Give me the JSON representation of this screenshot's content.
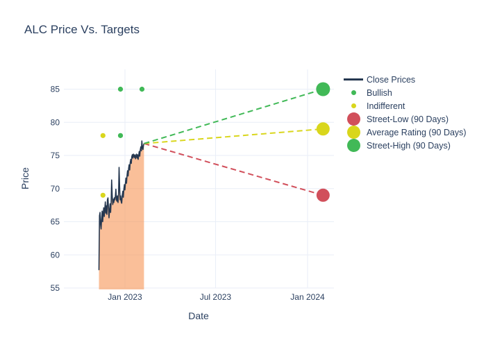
{
  "title": "ALC Price Vs. Targets",
  "colors": {
    "text": "#2a3f5f",
    "grid": "#e9eef7",
    "close_line": "#263850",
    "area_fill": "rgba(247,148,85,0.6)",
    "bullish": "#41b957",
    "indifferent": "#d9d61c",
    "street_low": "#d14f5b",
    "average_rating": "#d9d61c",
    "street_high": "#41b957"
  },
  "chart_data": {
    "type": "line",
    "title": "ALC Price Vs. Targets",
    "xlabel": "Date",
    "ylabel": "Price",
    "ylim": [
      55,
      87
    ],
    "yticks": [
      55,
      60,
      65,
      70,
      75,
      80,
      85
    ],
    "xticks": [
      {
        "date": "2023-01-01",
        "label": "Jan 2023"
      },
      {
        "date": "2023-07-01",
        "label": "Jul 2023"
      },
      {
        "date": "2024-01-01",
        "label": "Jan 2024"
      }
    ],
    "grid": "on",
    "legend_position": "right",
    "close_prices": {
      "name": "Close Prices",
      "start_date": "2022-11-10",
      "interval_days": 1.0588,
      "values": [
        57.7,
        65.9,
        66.4,
        64.6,
        63.9,
        65.3,
        66.6,
        65.0,
        66.2,
        67.1,
        65.8,
        66.9,
        68.0,
        66.3,
        67.4,
        66.1,
        68.3,
        68.6,
        67.0,
        65.6,
        66.8,
        67.7,
        66.4,
        68.1,
        71.3,
        69.0,
        67.6,
        68.4,
        67.9,
        68.6,
        68.3,
        68.9,
        69.9,
        68.3,
        68.1,
        68.9,
        67.9,
        69.4,
        73.2,
        70.3,
        68.3,
        68.9,
        68.0,
        67.8,
        69.0,
        69.6,
        68.7,
        69.9,
        70.6,
        69.8,
        70.9,
        71.6,
        70.8,
        72.0,
        72.7,
        71.9,
        73.1,
        73.6,
        72.8,
        73.9,
        74.4,
        73.8,
        74.8,
        75.1,
        74.6,
        75.2,
        75.0,
        74.7,
        75.1,
        74.5,
        74.9,
        75.2,
        74.6,
        75.1,
        74.4,
        75.0,
        75.6,
        74.9,
        75.8,
        76.3,
        75.7,
        77.2,
        76.2,
        75.9,
        76.5,
        76.8
      ]
    },
    "ratings": [
      {
        "series": "Indifferent",
        "date": "2022-11-18",
        "price": 78
      },
      {
        "series": "Indifferent",
        "date": "2022-11-18",
        "price": 69
      },
      {
        "series": "Bullish",
        "date": "2022-12-23",
        "price": 78
      },
      {
        "series": "Bullish",
        "date": "2022-12-23",
        "price": 85
      },
      {
        "series": "Bullish",
        "date": "2023-02-04",
        "price": 85
      }
    ],
    "targets": [
      {
        "name": "Street-Low (90 Days)",
        "date": "2024-02-01",
        "price": 69,
        "color": "#d14f5b",
        "radius": 9.5
      },
      {
        "name": "Average Rating (90 Days)",
        "date": "2024-02-01",
        "price": 79,
        "color": "#d9d61c",
        "radius": 9.5
      },
      {
        "name": "Street-High (90 Days)",
        "date": "2024-02-01",
        "price": 85,
        "color": "#41b957",
        "radius": 10
      }
    ],
    "legend": [
      {
        "label": "Close Prices",
        "marker": "line",
        "color": "#263850"
      },
      {
        "label": "Bullish",
        "marker": "dot-small",
        "color": "#41b957"
      },
      {
        "label": "Indifferent",
        "marker": "dot-small",
        "color": "#d9d61c"
      },
      {
        "label": "Street-Low (90 Days)",
        "marker": "dot-large",
        "color": "#d14f5b"
      },
      {
        "label": "Average Rating (90 Days)",
        "marker": "dot-large",
        "color": "#d9d61c"
      },
      {
        "label": "Street-High (90 Days)",
        "marker": "dot-large",
        "color": "#41b957"
      }
    ]
  }
}
